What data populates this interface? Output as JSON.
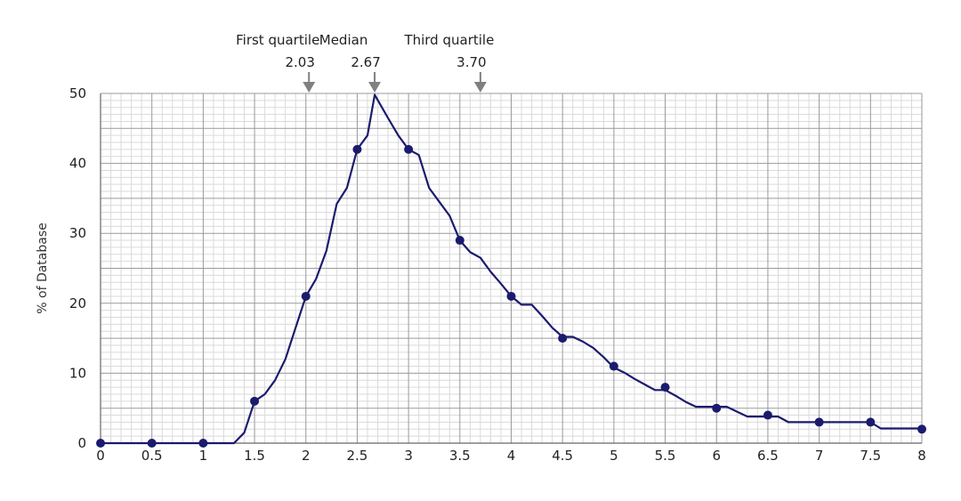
{
  "chart_data": {
    "type": "line",
    "title": "",
    "xlabel": "",
    "ylabel": "% of Database",
    "xlim": [
      0,
      8
    ],
    "ylim": [
      0,
      50
    ],
    "grid": true,
    "x_ticks": [
      0,
      0.5,
      1,
      1.5,
      2,
      2.5,
      3,
      3.5,
      4,
      4.5,
      5,
      5.5,
      6,
      6.5,
      7,
      7.5,
      8
    ],
    "x_tick_labels": [
      "0",
      "0.5",
      "1",
      "1.5",
      "2",
      "2.5",
      "3",
      "3.5",
      "4",
      "4.5",
      "5",
      "5.5",
      "6",
      "6.5",
      "7",
      "7.5",
      "8"
    ],
    "y_ticks": [
      0,
      10,
      20,
      30,
      40,
      50
    ],
    "y_tick_labels": [
      "0",
      "10",
      "20",
      "30",
      "40",
      "50"
    ],
    "series": [
      {
        "color": "#1b1b6e",
        "curve_x": [
          0,
          0.5,
          1,
          1.3,
          1.4,
          1.5,
          1.6,
          1.7,
          1.8,
          1.9,
          2,
          2.1,
          2.2,
          2.3,
          2.4,
          2.5,
          2.6,
          2.67,
          2.8,
          2.9,
          3,
          3.1,
          3.2,
          3.3,
          3.4,
          3.5,
          3.6,
          3.7,
          3.8,
          3.9,
          4,
          4.1,
          4.2,
          4.3,
          4.4,
          4.5,
          4.6,
          4.7,
          4.8,
          4.9,
          5,
          5.1,
          5.2,
          5.3,
          5.4,
          5.5,
          5.6,
          5.7,
          5.8,
          5.9,
          6,
          6.1,
          6.2,
          6.3,
          6.4,
          6.5,
          6.6,
          6.7,
          6.8,
          6.9,
          7,
          7.1,
          7.2,
          7.3,
          7.4,
          7.5,
          7.6,
          7.7,
          7.8,
          7.9,
          8
        ],
        "curve_y": [
          0,
          0,
          0,
          0,
          1.5,
          6,
          7,
          9,
          12,
          16.5,
          21,
          23.5,
          27.5,
          34.2,
          36.5,
          42,
          44,
          49.8,
          46.5,
          44,
          42,
          41.2,
          36.5,
          34.5,
          32.5,
          29,
          27.3,
          26.5,
          24.5,
          22.8,
          21,
          19.8,
          19.8,
          18.2,
          16.5,
          15.2,
          15.2,
          14.5,
          13.6,
          12.3,
          10.8,
          10.1,
          9.2,
          8.4,
          7.6,
          7.6,
          6.8,
          5.9,
          5.2,
          5.2,
          5.2,
          5.2,
          4.5,
          3.8,
          3.8,
          3.8,
          3.8,
          3,
          3,
          3,
          3,
          3,
          3,
          3,
          3,
          3,
          2.1,
          2.1,
          2.1,
          2.1,
          2.1
        ],
        "points_x": [
          0,
          0.5,
          1,
          1.5,
          2,
          2.5,
          3,
          3.5,
          4,
          4.5,
          5,
          5.5,
          6,
          6.5,
          7,
          7.5,
          8
        ],
        "points_y": [
          0,
          0,
          0,
          6,
          21,
          42,
          42,
          29,
          21,
          15,
          11,
          8,
          5,
          4,
          3,
          3,
          2
        ]
      }
    ],
    "annotations": [
      {
        "x": 2.03,
        "label": "First quartile",
        "value": "2.03"
      },
      {
        "x": 2.67,
        "label": "Median",
        "value": "2.67"
      },
      {
        "x": 3.7,
        "label": "Third quartile",
        "value": "3.70"
      }
    ],
    "colors": {
      "line": "#1b1b6e",
      "marker": "#1b1b6e",
      "grid_major": "#9a9a9a",
      "grid_minor": "#dadada",
      "arrow": "#808080"
    }
  }
}
